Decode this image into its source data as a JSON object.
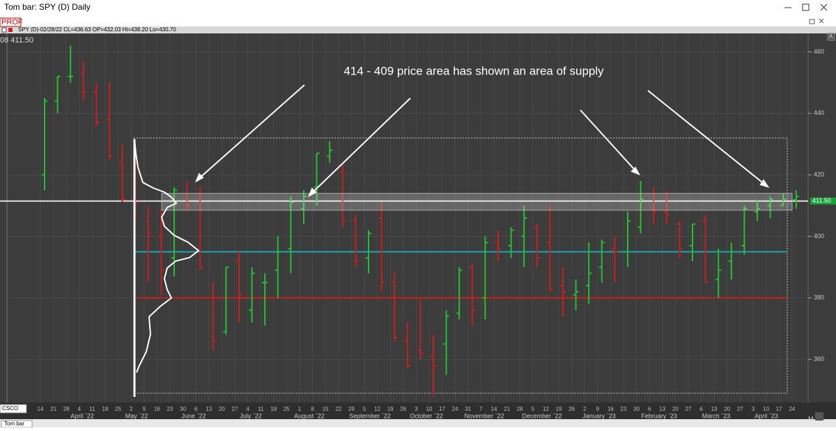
{
  "window": {
    "title": "Tom bar: SPY (D) Daily"
  },
  "info": {
    "profile": "PROF",
    "line": "SPY (D)-02/28/22 CL=436.63 OP=432.03 Hi=438.20 Lo=430.70",
    "corner": "08 411.50",
    "price_tag": "411.50",
    "axis_button": "A"
  },
  "footer": {
    "symbol": "CSCO",
    "tab": "Tom bar",
    "mode": "M"
  },
  "annotation": "414 - 409 price area has shown an area of supply",
  "chart_data": {
    "type": "ohlc",
    "ylim": [
      346,
      466
    ],
    "yticks": [
      360,
      380,
      400,
      420,
      440,
      460
    ],
    "week_labels": [
      "14",
      "21",
      "28",
      "4",
      "11",
      "18",
      "25",
      "2",
      "9",
      "16",
      "23",
      "30",
      "6",
      "13",
      "20",
      "27",
      "4",
      "11",
      "18",
      "25",
      "1",
      "8",
      "15",
      "22",
      "29",
      "5",
      "12",
      "19",
      "26",
      "3",
      "10",
      "17",
      "24",
      "31",
      "7",
      "14",
      "21",
      "28",
      "5",
      "12",
      "19",
      "26",
      "2",
      "9",
      "16",
      "23",
      "30",
      "6",
      "13",
      "20",
      "27",
      "6",
      "13",
      "20",
      "27",
      "3",
      "10",
      "17",
      "24"
    ],
    "months": [
      "April `22",
      "May `22",
      "June `22",
      "July `22",
      "August `22",
      "September `22",
      "October `22",
      "November `22",
      "December `22",
      "January `23",
      "February `23",
      "March `23",
      "April `23"
    ],
    "open": [
      420,
      444,
      452,
      453,
      447,
      438,
      424,
      412,
      405,
      400,
      393,
      414,
      414,
      380,
      369,
      392,
      376,
      385,
      389,
      396,
      409,
      416,
      426,
      421,
      405,
      393,
      406,
      385,
      366,
      363,
      361,
      365,
      375,
      390,
      380,
      398,
      397,
      400,
      403,
      398,
      384,
      381,
      384,
      390,
      396,
      395,
      403,
      409,
      408,
      404,
      397,
      405,
      386,
      392,
      397,
      408,
      410,
      410,
      412
    ],
    "high": [
      445,
      452,
      462,
      457,
      450,
      450,
      430,
      429,
      410,
      409,
      416,
      418,
      416,
      385,
      390,
      395,
      390,
      388,
      400,
      413,
      415,
      427,
      431,
      424,
      407,
      402,
      411,
      388,
      372,
      379,
      368,
      376,
      390,
      391,
      400,
      402,
      403,
      410,
      404,
      410,
      390,
      386,
      398,
      399,
      400,
      408,
      418,
      416,
      415,
      405,
      404,
      407,
      396,
      398,
      410,
      412,
      413,
      414,
      415
    ],
    "low": [
      415,
      440,
      450,
      444,
      436,
      425,
      411,
      405,
      385,
      381,
      387,
      408,
      389,
      363,
      368,
      372,
      372,
      371,
      380,
      388,
      404,
      410,
      424,
      403,
      390,
      388,
      382,
      366,
      357,
      360,
      348,
      355,
      373,
      371,
      373,
      392,
      393,
      390,
      390,
      382,
      374,
      376,
      378,
      385,
      385,
      390,
      401,
      404,
      404,
      393,
      392,
      385,
      380,
      386,
      394,
      405,
      406,
      410,
      409
    ],
    "close": [
      444,
      452,
      452,
      447,
      437,
      426,
      412,
      411,
      401,
      389,
      415,
      410,
      390,
      366,
      390,
      381,
      388,
      385,
      395,
      411,
      413,
      427,
      428,
      405,
      392,
      401,
      385,
      367,
      358,
      362,
      358,
      374,
      389,
      376,
      398,
      396,
      402,
      406,
      393,
      383,
      382,
      382,
      388,
      398,
      395,
      405,
      412,
      408,
      407,
      396,
      404,
      385,
      389,
      395,
      409,
      409,
      412,
      412,
      413
    ],
    "up_color": "#22c032",
    "down_color": "#c81e1e",
    "levels": [
      {
        "value": 411.5,
        "color": "#e0e0e0"
      },
      {
        "value": 395,
        "color": "#1aa6b0"
      },
      {
        "value": 380,
        "color": "#c81e1e"
      }
    ],
    "band": [
      408.5,
      414
    ],
    "box": [
      349,
      432
    ]
  }
}
